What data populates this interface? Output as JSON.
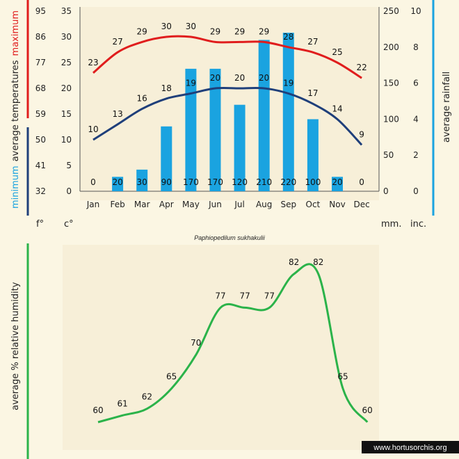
{
  "colors": {
    "max": "#e01d1d",
    "min": "#1f3f7a",
    "rain": "#1aa3e0",
    "humidity": "#2bb34a",
    "panel": "#f7efd8",
    "background": "#fbf6e3",
    "watermark_bg": "#111111"
  },
  "chart_data": [
    {
      "type": "line+bar",
      "title": "Paphiopedilum sukhakulii",
      "months": [
        "Jan",
        "Feb",
        "Mar",
        "Apr",
        "May",
        "Jun",
        "Jul",
        "Aug",
        "Sep",
        "Oct",
        "Nov",
        "Dec"
      ],
      "series": [
        {
          "name": "maximum",
          "values": [
            23,
            27,
            29,
            30,
            30,
            29,
            29,
            29,
            28,
            27,
            25,
            22
          ]
        },
        {
          "name": "minimum",
          "values": [
            10,
            13,
            16,
            18,
            19,
            20,
            20,
            20,
            19,
            17,
            14,
            9
          ]
        }
      ],
      "rainfall_mm": [
        0,
        20,
        30,
        90,
        170,
        170,
        120,
        210,
        220,
        100,
        20,
        0
      ],
      "axes": {
        "f_ticks": [
          "95",
          "86",
          "77",
          "68",
          "59",
          "50",
          "41",
          "32"
        ],
        "c_ticks": [
          "35",
          "30",
          "25",
          "20",
          "15",
          "10",
          "5",
          "0"
        ],
        "mm_ticks": [
          "250",
          "200",
          "150",
          "100",
          "50",
          "0"
        ],
        "inch_ticks": [
          "10",
          "8",
          "6",
          "4",
          "2",
          "0"
        ],
        "c_range": [
          0,
          35
        ],
        "mm_range": [
          0,
          250
        ]
      },
      "labels": {
        "left_label_min": "minimum",
        "left_label_mid": "average temperatures",
        "left_label_max": "maximum",
        "right_label": "average rainfall",
        "unit_f": "f°",
        "unit_c": "c°",
        "unit_mm": "mm.",
        "unit_inch": "inc."
      }
    },
    {
      "type": "line",
      "ylabel": "average %  relative humidity",
      "series": [
        {
          "name": "humidity",
          "values": [
            60,
            61,
            62,
            65,
            70,
            77,
            77,
            77,
            82,
            82,
            65,
            60
          ]
        }
      ]
    }
  ],
  "watermark": "www.hortusorchis.org"
}
